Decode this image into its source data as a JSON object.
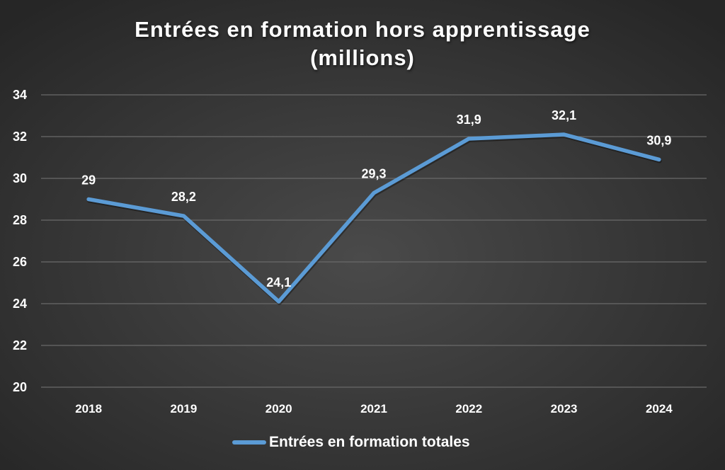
{
  "chart_data": {
    "type": "line",
    "title": "Entrées en formation hors apprentissage (millions)",
    "title_lines": [
      "Entrées en formation hors apprentissage",
      "(millions)"
    ],
    "xlabel": "",
    "ylabel": "",
    "categories": [
      "2018",
      "2019",
      "2020",
      "2021",
      "2022",
      "2023",
      "2024"
    ],
    "series": [
      {
        "name": "Entrées en formation totales",
        "values": [
          29,
          28.2,
          24.1,
          29.3,
          31.9,
          32.1,
          30.9
        ],
        "labels": [
          "29",
          "28,2",
          "24,1",
          "29,3",
          "31,9",
          "32,1",
          "30,9"
        ],
        "color": "#5b9bd5"
      }
    ],
    "ylim": [
      20,
      34
    ],
    "yticks": [
      "20",
      "22",
      "24",
      "26",
      "28",
      "30",
      "32",
      "34"
    ],
    "grid": true,
    "legend_position": "bottom"
  }
}
